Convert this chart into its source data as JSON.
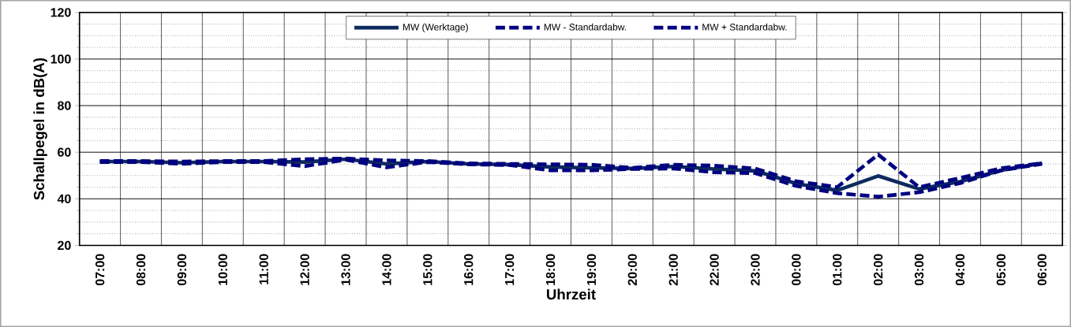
{
  "chart_data": {
    "type": "line",
    "xlabel": "Uhrzeit",
    "ylabel": "Schallpegel in dB(A)",
    "categories": [
      "07:00",
      "08:00",
      "09:00",
      "10:00",
      "11:00",
      "12:00",
      "13:00",
      "14:00",
      "15:00",
      "16:00",
      "17:00",
      "18:00",
      "19:00",
      "20:00",
      "21:00",
      "22:00",
      "23:00",
      "00:00",
      "01:00",
      "02:00",
      "03:00",
      "04:00",
      "05:00",
      "06:00"
    ],
    "series": [
      {
        "name": "MW (Werktage)",
        "color": "#0d2b5e",
        "line_style": "solid",
        "values": [
          56,
          56,
          55.5,
          56,
          56,
          55.8,
          57,
          55,
          56,
          55,
          54.7,
          53.7,
          53.3,
          53,
          53.9,
          52.8,
          52,
          46.5,
          43.6,
          49.8,
          44.2,
          47.4,
          52.2,
          55.3
        ]
      },
      {
        "name": "MW - Standardabw.",
        "color": "#000080",
        "line_style": "dashed",
        "values": [
          55.8,
          55.8,
          55,
          55.8,
          55.8,
          54,
          56.8,
          53.5,
          55.8,
          54.8,
          54.5,
          52.2,
          52.2,
          52.8,
          53,
          51.4,
          51,
          45.5,
          42.4,
          40.9,
          42.8,
          46.7,
          52.2,
          55
        ]
      },
      {
        "name": "MW + Standardabw.",
        "color": "#000080",
        "line_style": "dashed",
        "values": [
          56.2,
          56.2,
          56,
          56.2,
          56.2,
          57,
          57.3,
          56.5,
          56.2,
          55.2,
          55,
          54.8,
          54.6,
          53.3,
          54.6,
          54.2,
          53,
          47.5,
          45,
          59,
          45,
          48.9,
          53.1,
          55.3
        ]
      }
    ],
    "ylim": [
      20,
      120
    ],
    "yticks": [
      20,
      40,
      60,
      80,
      100,
      120
    ],
    "grid": true,
    "legend": "top",
    "marker": "none"
  }
}
